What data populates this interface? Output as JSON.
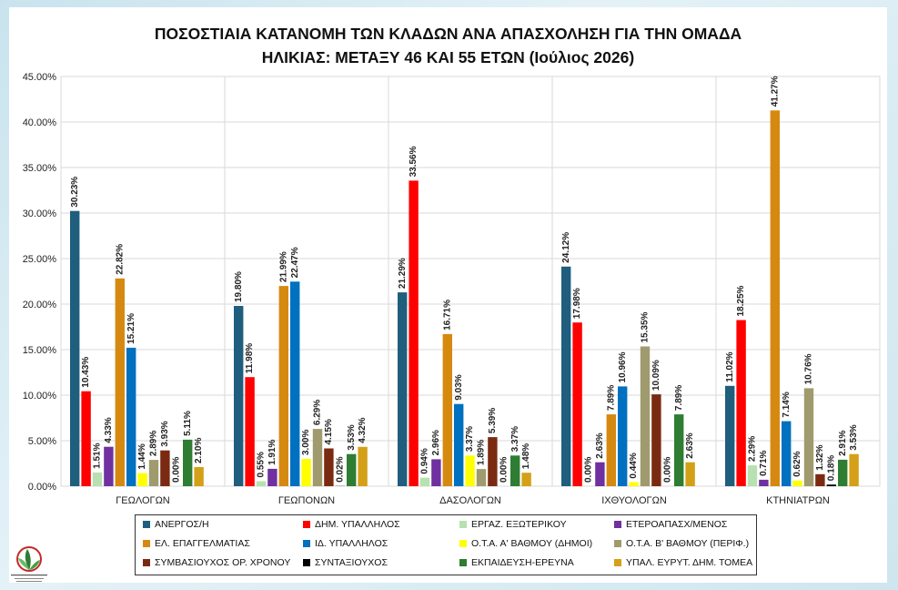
{
  "title": {
    "line1": "ΠΟΣΟΣΤΙΑΙΑ ΚΑΤΑΝΟΜΗ ΤΩΝ ΚΛΑΔΩΝ ΑΝΑ ΑΠΑΣΧΟΛΗΣΗ ΓΙΑ ΤΗΝ ΟΜΑΔΑ",
    "line2": "ΗΛΙΚΙΑΣ: ΜΕΤΑΞΥ 46 ΚΑΙ 55 ΕΤΩΝ (Ιούλιος 2026)"
  },
  "logo": {
    "icon": "organization-logo-icon",
    "text": "ΓΕΩΤΕΧΝΙΚΟ ΕΠΙΜΕΛΗΤΗΡΙΟ ΕΛΛΑΔΑΣ"
  },
  "chart_data": {
    "type": "bar",
    "title": "ΠΟΣΟΣΤΙΑΙΑ ΚΑΤΑΝΟΜΗ ΤΩΝ ΚΛΑΔΩΝ ΑΝΑ ΑΠΑΣΧΟΛΗΣΗ ΓΙΑ ΤΗΝ ΟΜΑΔΑ ΗΛΙΚΙΑΣ: ΜΕΤΑΞΥ 46 ΚΑΙ 55 ΕΤΩΝ (Ιούλιος 2026)",
    "xlabel": "",
    "ylabel": "",
    "ylim": [
      0,
      45
    ],
    "yticks": [
      "0.00%",
      "5.00%",
      "10.00%",
      "15.00%",
      "20.00%",
      "25.00%",
      "30.00%",
      "35.00%",
      "40.00%",
      "45.00%"
    ],
    "grid": true,
    "legend_position": "bottom",
    "categories": [
      "ΓΕΩΛΟΓΩΝ",
      "ΓΕΩΠΟΝΩΝ",
      "ΔΑΣΟΛΟΓΩΝ",
      "ΙΧΘΥΟΛΟΓΩΝ",
      "ΚΤΗΝΙΑΤΡΩΝ"
    ],
    "series": [
      {
        "name": "ΑΝΕΡΓΟΣ/Η",
        "color": "#1F5E7D",
        "values": [
          30.23,
          19.8,
          21.29,
          24.12,
          11.02
        ],
        "labels": [
          "30.23%",
          "19.80%",
          "21.29%",
          "24.12%",
          "11.02%"
        ]
      },
      {
        "name": "ΔΗΜ. ΥΠΑΛΛΗΛΟΣ",
        "color": "#FF0000",
        "values": [
          10.43,
          11.98,
          33.56,
          17.98,
          18.25
        ],
        "labels": [
          "10.43%",
          "11.98%",
          "33.56%",
          "17.98%",
          "18.25%"
        ]
      },
      {
        "name": "ΕΡΓΑΖ. ΕΞΩΤΕΡΙΚΟΥ",
        "color": "#B7E1B0",
        "values": [
          1.51,
          0.55,
          0.94,
          0.0,
          2.29
        ],
        "labels": [
          "1.51%",
          "0.55%",
          "0.94%",
          "0.00%",
          "2.29%"
        ]
      },
      {
        "name": "ΕΤΕΡΟΑΠΑΣΧ/ΜΕΝΟΣ",
        "color": "#7030A0",
        "values": [
          4.33,
          1.91,
          2.96,
          2.63,
          0.71
        ],
        "labels": [
          "4.33%",
          "1.91%",
          "2.96%",
          "2.63%",
          "0.71%"
        ]
      },
      {
        "name": "ΕΛ. ΕΠΑΓΓΕΛΜΑΤΙΑΣ",
        "color": "#D68910",
        "values": [
          22.82,
          21.99,
          16.71,
          7.89,
          41.27
        ],
        "labels": [
          "22.82%",
          "21.99%",
          "16.71%",
          "7.89%",
          "41.27%"
        ]
      },
      {
        "name": "ΙΔ. ΥΠΑΛΛΗΛΟΣ",
        "color": "#0070C0",
        "values": [
          15.21,
          22.47,
          9.03,
          10.96,
          7.14
        ],
        "labels": [
          "15.21%",
          "22.47%",
          "9.03%",
          "10.96%",
          "7.14%"
        ]
      },
      {
        "name": "Ο.Τ.Α. Α' ΒΑΘΜΟΥ (ΔΗΜΟΙ)",
        "color": "#FFFF00",
        "values": [
          1.44,
          3.0,
          3.37,
          0.44,
          0.62
        ],
        "labels": [
          "1.44%",
          "3.00%",
          "3.37%",
          "0.44%",
          "0.62%"
        ]
      },
      {
        "name": "Ο.Τ.Α. Β' ΒΑΘΜΟΥ (ΠΕΡΙΦ.)",
        "color": "#A09B6E",
        "values": [
          2.89,
          6.29,
          1.89,
          15.35,
          10.76
        ],
        "labels": [
          "2.89%",
          "6.29%",
          "1.89%",
          "15.35%",
          "10.76%"
        ]
      },
      {
        "name": "ΣΥΜΒΑΣΙΟΥΧΟΣ ΟΡ. ΧΡΟΝΟΥ",
        "color": "#7B2A12",
        "values": [
          3.93,
          4.15,
          5.39,
          10.09,
          1.32
        ],
        "labels": [
          "3.93%",
          "4.15%",
          "5.39%",
          "10.09%",
          "1.32%"
        ]
      },
      {
        "name": "ΣΥΝΤΑΞΙΟΥΧΟΣ",
        "color": "#000000",
        "values": [
          0.0,
          0.02,
          0.0,
          0.0,
          0.18
        ],
        "labels": [
          "0.00%",
          "0.02%",
          "0.00%",
          "0.00%",
          "0.18%"
        ]
      },
      {
        "name": "ΕΚΠΑΙΔΕΥΣΗ-ΕΡΕΥΝΑ",
        "color": "#2E7D32",
        "values": [
          5.11,
          3.53,
          3.37,
          7.89,
          2.91
        ],
        "labels": [
          "5.11%",
          "3.53%",
          "3.37%",
          "7.89%",
          "2.91%"
        ]
      },
      {
        "name": "ΥΠΑΛ. ΕΥΡΥΤ. ΔΗΜ. ΤΟΜΕΑ",
        "color": "#D4A017",
        "values": [
          2.1,
          4.32,
          1.48,
          2.63,
          3.53
        ],
        "labels": [
          "2.10%",
          "4.32%",
          "1.48%",
          "2.63%",
          "3.53%"
        ]
      }
    ]
  }
}
